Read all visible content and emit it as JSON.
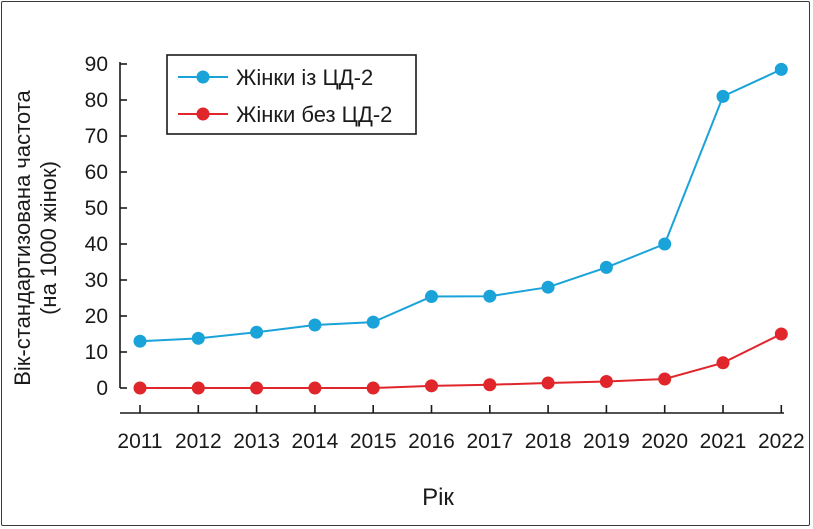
{
  "chart_data": {
    "type": "line",
    "xlabel": "Рік",
    "ylabel_line1": "Вік-стандартизована частота",
    "ylabel_line2": "(на 1000 жінок)",
    "categories": [
      "2011",
      "2012",
      "2013",
      "2014",
      "2015",
      "2016",
      "2017",
      "2018",
      "2019",
      "2020",
      "2021",
      "2022"
    ],
    "y_ticks": [
      "0",
      "10",
      "20",
      "30",
      "40",
      "50",
      "60",
      "70",
      "80",
      "90"
    ],
    "ylim": [
      0,
      90
    ],
    "grid": false,
    "legend_position": "top-left",
    "series": [
      {
        "name": "Жінки із ЦД-2",
        "color": "#1aa3d9",
        "values": [
          13,
          13.8,
          15.5,
          17.5,
          18.3,
          25.4,
          25.5,
          28,
          33.5,
          40,
          81,
          88.5
        ]
      },
      {
        "name": "Жінки без ЦД-2",
        "color": "#e0262b",
        "values": [
          0,
          0,
          0,
          0,
          0,
          0.6,
          0.9,
          1.4,
          1.8,
          2.5,
          7,
          15
        ]
      }
    ]
  }
}
